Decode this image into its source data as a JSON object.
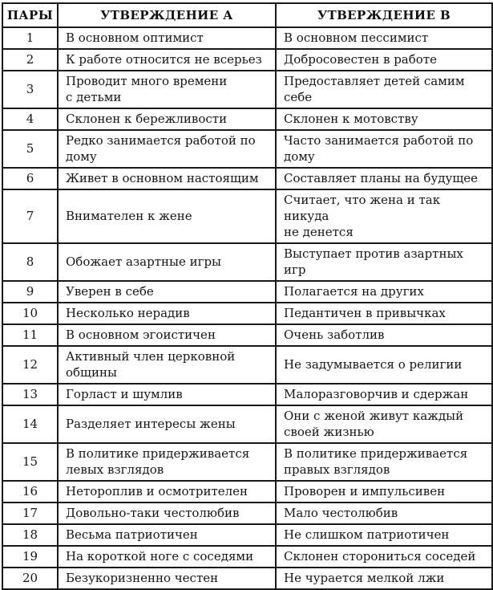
{
  "table": {
    "headers": [
      "ПАРЫ",
      "УТВЕРЖДЕНИЕ А",
      "УТВЕРЖДЕНИЕ В"
    ],
    "rows": [
      {
        "pair": "1",
        "a": "В основном оптимист",
        "b": "В основном пессимист"
      },
      {
        "pair": "2",
        "a": "К работе относится не всерьез",
        "b": "Добросовестен в работе"
      },
      {
        "pair": "3",
        "a": "Проводит много времени\nс детьми",
        "b": "Предоставляет детей самим\nсебе"
      },
      {
        "pair": "4",
        "a": "Склонен к бережливости",
        "b": "Склонен к мотовству"
      },
      {
        "pair": "5",
        "a": "Редко занимается работой по\nдому",
        "b": "Часто занимается работой по\nдому"
      },
      {
        "pair": "6",
        "a": "Живет в основном настоящим",
        "b": "Составляет планы на будущее"
      },
      {
        "pair": "7",
        "a": "Внимателен к жене",
        "b": "Считает, что жена и так никуда\nне денется"
      },
      {
        "pair": "8",
        "a": "Обожает азартные игры",
        "b": "Выступает против азартных\nигр"
      },
      {
        "pair": "9",
        "a": "Уверен в себе",
        "b": "Полагается на других"
      },
      {
        "pair": "10",
        "a": "Несколько нерадив",
        "b": "Педантичен в привычках"
      },
      {
        "pair": "11",
        "a": "В основном эгоистичен",
        "b": "Очень заботлив"
      },
      {
        "pair": "12",
        "a": "Активный член церковной\nобщины",
        "b": "Не задумывается о религии"
      },
      {
        "pair": "13",
        "a": "Горласт и шумлив",
        "b": "Малоразговорчив и сдержан"
      },
      {
        "pair": "14",
        "a": "Разделяет интересы жены",
        "b": "Они с женой живут каждый\nсвоей жизнью"
      },
      {
        "pair": "15",
        "a": "В политике придерживается\nлевых взглядов",
        "b": "В политике придерживается\nправых взглядов"
      },
      {
        "pair": "16",
        "a": "Нетороплив и осмотрителен",
        "b": "Проворен и импульсивен"
      },
      {
        "pair": "17",
        "a": "Довольно-таки честолюбив",
        "b": "Мало честолюбив"
      },
      {
        "pair": "18",
        "a": "Весьма патриотичен",
        "b": "Не слишком патриотичен"
      },
      {
        "pair": "19",
        "a": "На короткой ноге с соседями",
        "b": "Склонен сторониться соседей"
      },
      {
        "pair": "20",
        "a": "Безукоризненно честен",
        "b": "Не чурается мелкой лжи"
      }
    ]
  },
  "colors": {
    "text": "#161616",
    "border": "#1a1a1a",
    "background": "#ffffff"
  }
}
